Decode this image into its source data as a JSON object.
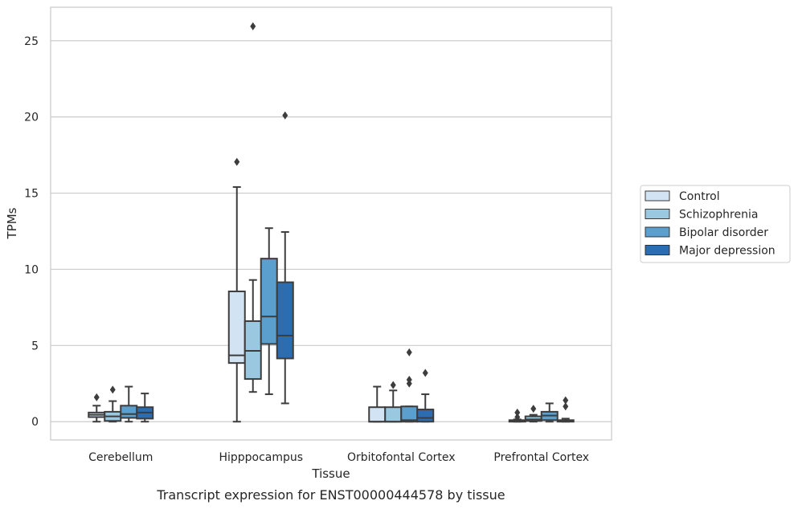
{
  "chart_data": {
    "type": "box",
    "caption": "Transcript expression for ENST00000444578 by tissue",
    "xlabel": "Tissue",
    "ylabel": "TPMs",
    "ylim": [
      -1.2,
      27.2
    ],
    "yticks": [
      0,
      5,
      10,
      15,
      20,
      25
    ],
    "grid": "horizontal",
    "legend_position": "right",
    "categories": [
      "Cerebellum",
      "Hipppocampus",
      "Orbitofontal Cortex",
      "Prefrontal Cortex"
    ],
    "series": [
      {
        "name": "Control",
        "color": "#d2e3f3",
        "boxes": [
          {
            "whislo": 0.0,
            "q1": 0.3,
            "med": 0.45,
            "q3": 0.6,
            "whishi": 1.05,
            "fliers": [
              1.6
            ]
          },
          {
            "whislo": 0.0,
            "q1": 3.85,
            "med": 4.35,
            "q3": 8.55,
            "whishi": 15.4,
            "fliers": [
              17.05
            ]
          },
          {
            "whislo": 0.0,
            "q1": 0.0,
            "med": 0.0,
            "q3": 0.95,
            "whishi": 2.3,
            "fliers": []
          },
          {
            "whislo": 0.0,
            "q1": 0.0,
            "med": 0.02,
            "q3": 0.1,
            "whishi": 0.15,
            "fliers": [
              0.3,
              0.6
            ]
          }
        ]
      },
      {
        "name": "Schizophrenia",
        "color": "#9ac8e0",
        "boxes": [
          {
            "whislo": 0.0,
            "q1": 0.05,
            "med": 0.35,
            "q3": 0.65,
            "whishi": 1.35,
            "fliers": [
              2.1
            ]
          },
          {
            "whislo": 1.95,
            "q1": 2.8,
            "med": 4.65,
            "q3": 6.6,
            "whishi": 9.3,
            "fliers": [
              25.95
            ]
          },
          {
            "whislo": 0.0,
            "q1": 0.0,
            "med": 0.0,
            "q3": 0.95,
            "whishi": 2.05,
            "fliers": [
              2.4
            ]
          },
          {
            "whislo": 0.0,
            "q1": 0.05,
            "med": 0.15,
            "q3": 0.35,
            "whishi": 0.45,
            "fliers": [
              0.85
            ]
          }
        ]
      },
      {
        "name": "Bipolar disorder",
        "color": "#5a9fcd",
        "boxes": [
          {
            "whislo": 0.0,
            "q1": 0.25,
            "med": 0.5,
            "q3": 1.05,
            "whishi": 2.3,
            "fliers": []
          },
          {
            "whislo": 1.8,
            "q1": 5.1,
            "med": 6.9,
            "q3": 10.7,
            "whishi": 12.7,
            "fliers": []
          },
          {
            "whislo": 0.0,
            "q1": 0.0,
            "med": 0.1,
            "q3": 1.0,
            "whishi": 1.0,
            "fliers": [
              2.5,
              2.75,
              4.55
            ]
          },
          {
            "whislo": 0.0,
            "q1": 0.1,
            "med": 0.4,
            "q3": 0.65,
            "whishi": 1.2,
            "fliers": []
          }
        ]
      },
      {
        "name": "Major depression",
        "color": "#2c6db2",
        "boxes": [
          {
            "whislo": 0.0,
            "q1": 0.2,
            "med": 0.6,
            "q3": 0.95,
            "whishi": 1.85,
            "fliers": []
          },
          {
            "whislo": 1.2,
            "q1": 4.15,
            "med": 5.65,
            "q3": 9.15,
            "whishi": 12.45,
            "fliers": [
              20.1
            ]
          },
          {
            "whislo": 0.0,
            "q1": 0.0,
            "med": 0.25,
            "q3": 0.8,
            "whishi": 1.8,
            "fliers": [
              3.2
            ]
          },
          {
            "whislo": 0.0,
            "q1": 0.0,
            "med": 0.02,
            "q3": 0.1,
            "whishi": 0.2,
            "fliers": [
              1.0,
              1.4
            ]
          }
        ]
      }
    ]
  }
}
